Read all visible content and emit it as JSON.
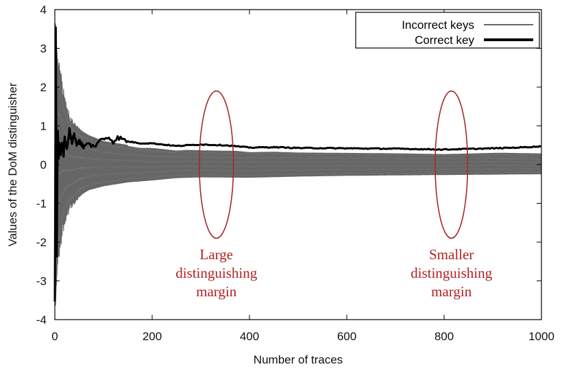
{
  "chart_data": {
    "type": "line",
    "title": "",
    "xlabel": "Number of traces",
    "ylabel": "Values of the DoM distinguisher",
    "xlim": [
      0,
      1000
    ],
    "ylim": [
      -4,
      4
    ],
    "xticks": [
      0,
      200,
      400,
      600,
      800,
      1000
    ],
    "yticks": [
      -4,
      -3,
      -2,
      -1,
      0,
      1,
      2,
      3,
      4
    ],
    "grid": false,
    "legend_position": "top-right",
    "series": [
      {
        "name": "Incorrect keys",
        "color": "#666666",
        "kind": "envelope",
        "x": [
          0,
          2,
          5,
          10,
          15,
          20,
          30,
          40,
          50,
          70,
          100,
          150,
          200,
          250,
          300,
          400,
          500,
          600,
          700,
          800,
          900,
          1000
        ],
        "upper": [
          3.5,
          3.3,
          2.6,
          2.4,
          2.0,
          1.6,
          1.2,
          1.0,
          0.9,
          0.75,
          0.6,
          0.5,
          0.42,
          0.38,
          0.36,
          0.34,
          0.33,
          0.32,
          0.3,
          0.3,
          0.3,
          0.28
        ],
        "lower": [
          -3.5,
          -3.3,
          -2.5,
          -2.1,
          -1.7,
          -1.4,
          -1.1,
          -0.95,
          -0.8,
          -0.65,
          -0.55,
          -0.45,
          -0.4,
          -0.34,
          -0.32,
          -0.33,
          -0.3,
          -0.28,
          -0.27,
          -0.26,
          -0.25,
          -0.24
        ]
      },
      {
        "name": "Correct key",
        "color": "#000000",
        "kind": "line",
        "x": [
          0,
          2,
          4,
          6,
          8,
          10,
          12,
          15,
          18,
          20,
          25,
          30,
          35,
          40,
          45,
          50,
          60,
          70,
          80,
          90,
          100,
          110,
          120,
          130,
          150,
          175,
          200,
          250,
          300,
          350,
          400,
          450,
          500,
          600,
          700,
          800,
          900,
          950,
          1000
        ],
        "y": [
          -3.5,
          3.5,
          -2.4,
          0.9,
          0.2,
          0.5,
          0.3,
          0.6,
          0.2,
          0.7,
          0.4,
          0.9,
          0.55,
          0.8,
          0.5,
          0.6,
          0.45,
          0.55,
          0.45,
          0.6,
          0.65,
          0.72,
          0.6,
          0.7,
          0.6,
          0.55,
          0.55,
          0.48,
          0.52,
          0.5,
          0.44,
          0.45,
          0.43,
          0.42,
          0.41,
          0.39,
          0.42,
          0.44,
          0.47
        ]
      }
    ],
    "annotations": [
      {
        "lines": [
          "Large",
          "distinguishing",
          "margin"
        ],
        "ellipse_center": [
          332,
          0
        ],
        "ellipse_radii": [
          105,
          1.9
        ],
        "color": "#a52a2a"
      },
      {
        "lines": [
          "Smaller",
          "distinguishing",
          "margin"
        ],
        "ellipse_center": [
          815,
          0
        ],
        "ellipse_radii": [
          100,
          1.9
        ],
        "color": "#a52a2a"
      }
    ]
  }
}
